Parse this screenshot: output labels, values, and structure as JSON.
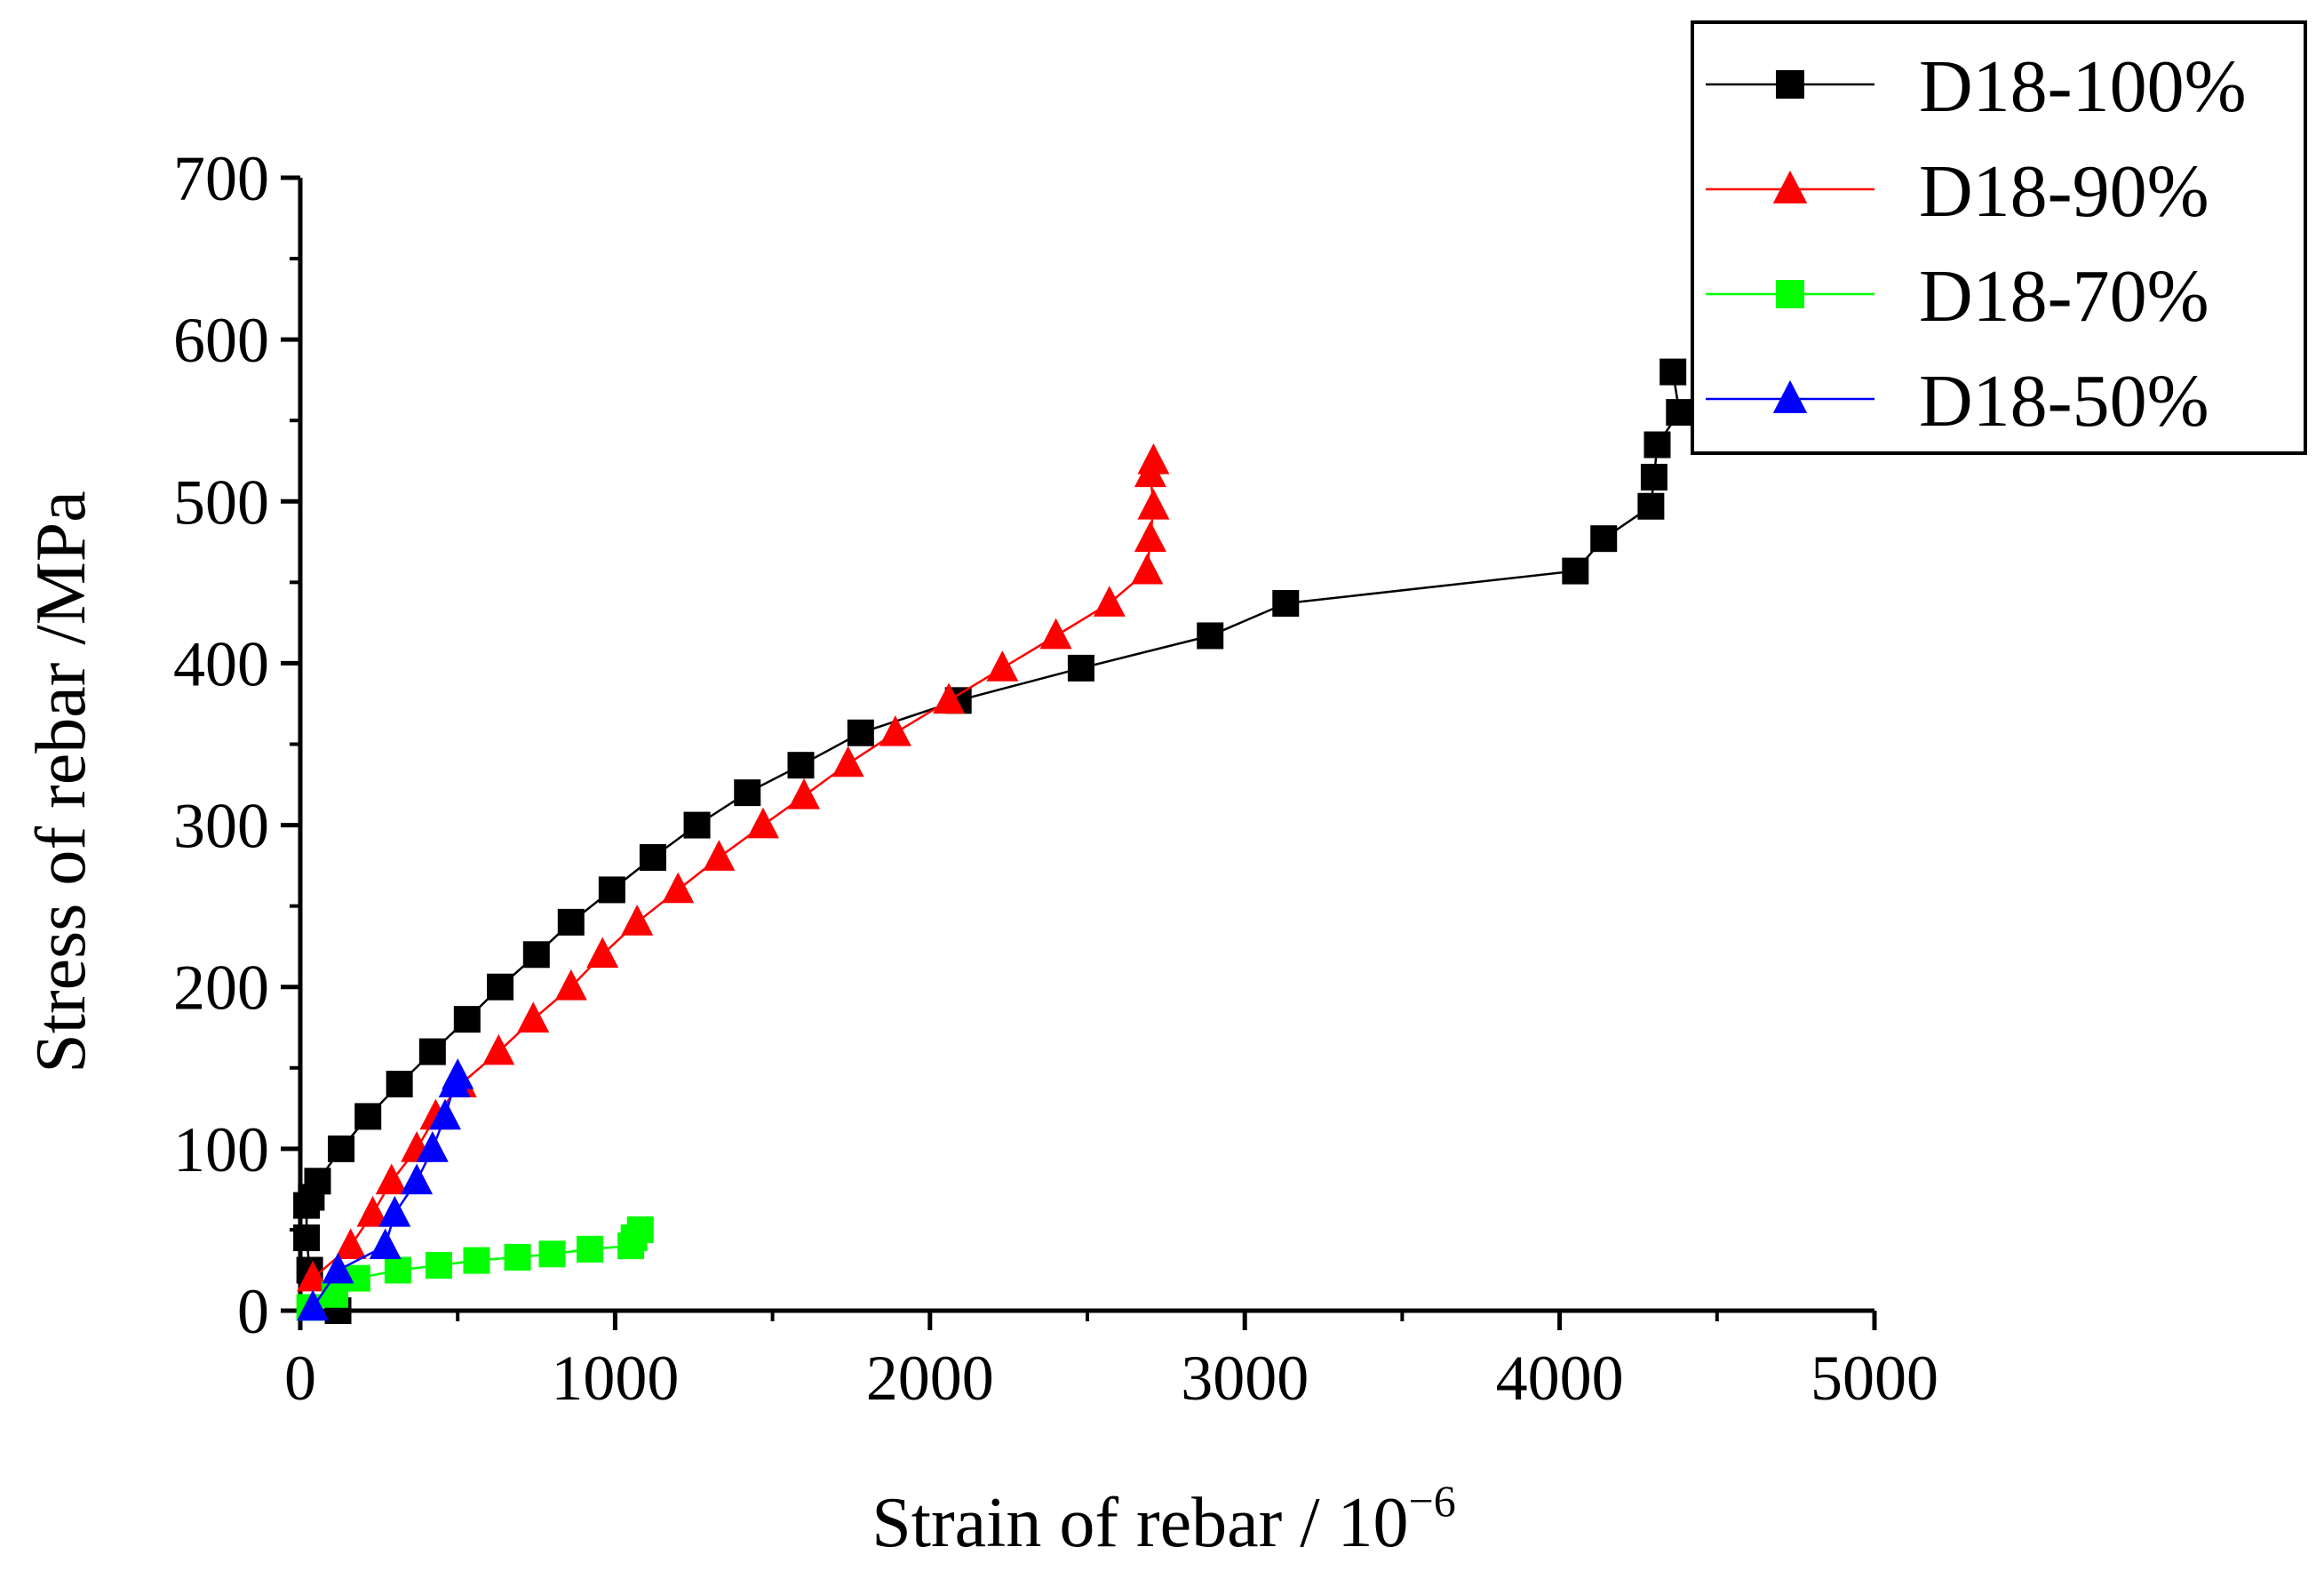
{
  "chart_data": {
    "type": "line",
    "title": "",
    "xlabel": "Strain of rebar / 10",
    "xlabel_exponent": "−6",
    "ylabel": "Stress of rebar /MPa",
    "xlim": [
      0,
      5000
    ],
    "ylim": [
      0,
      700
    ],
    "x_ticks": [
      0,
      1000,
      2000,
      3000,
      4000,
      5000
    ],
    "x_tick_labels": [
      "0",
      "1000",
      "2000",
      "3000",
      "4000",
      "5000"
    ],
    "y_ticks": [
      0,
      100,
      200,
      300,
      400,
      500,
      600,
      700
    ],
    "y_tick_labels": [
      "0",
      "100",
      "200",
      "300",
      "400",
      "500",
      "600",
      "700"
    ],
    "grid": false,
    "legend_position": "top-right",
    "series": [
      {
        "name": "D18-100%",
        "color": "#000000",
        "marker": "square",
        "points": [
          [
            120,
            0
          ],
          [
            30,
            25
          ],
          [
            20,
            45
          ],
          [
            20,
            65
          ],
          [
            35,
            70
          ],
          [
            55,
            80
          ],
          [
            130,
            100
          ],
          [
            215,
            120
          ],
          [
            315,
            140
          ],
          [
            420,
            160
          ],
          [
            530,
            180
          ],
          [
            635,
            200
          ],
          [
            750,
            220
          ],
          [
            860,
            240
          ],
          [
            990,
            260
          ],
          [
            1120,
            280
          ],
          [
            1260,
            300
          ],
          [
            1420,
            320
          ],
          [
            1590,
            337
          ],
          [
            1780,
            357
          ],
          [
            2090,
            377
          ],
          [
            2480,
            397
          ],
          [
            2890,
            417
          ],
          [
            3130,
            437
          ],
          [
            4050,
            457
          ],
          [
            4140,
            477
          ],
          [
            4290,
            497
          ],
          [
            4300,
            515
          ],
          [
            4310,
            535
          ],
          [
            4380,
            555
          ],
          [
            4360,
            580
          ]
        ]
      },
      {
        "name": "D18-90%",
        "color": "#ff0000",
        "marker": "triangle",
        "points": [
          [
            40,
            20
          ],
          [
            160,
            40
          ],
          [
            230,
            60
          ],
          [
            290,
            80
          ],
          [
            370,
            100
          ],
          [
            430,
            120
          ],
          [
            510,
            140
          ],
          [
            630,
            160
          ],
          [
            740,
            180
          ],
          [
            860,
            200
          ],
          [
            960,
            220
          ],
          [
            1070,
            240
          ],
          [
            1200,
            260
          ],
          [
            1330,
            280
          ],
          [
            1470,
            300
          ],
          [
            1600,
            318
          ],
          [
            1740,
            338
          ],
          [
            1890,
            357
          ],
          [
            2060,
            377
          ],
          [
            2230,
            397
          ],
          [
            2400,
            417
          ],
          [
            2570,
            437
          ],
          [
            2690,
            457
          ],
          [
            2700,
            477
          ],
          [
            2710,
            497
          ],
          [
            2700,
            517
          ],
          [
            2710,
            525
          ]
        ]
      },
      {
        "name": "D18-70%",
        "color": "#00ff00",
        "marker": "square",
        "points": [
          [
            30,
            2
          ],
          [
            110,
            10
          ],
          [
            180,
            20
          ],
          [
            310,
            25
          ],
          [
            440,
            28
          ],
          [
            560,
            31
          ],
          [
            690,
            33
          ],
          [
            800,
            35
          ],
          [
            920,
            38
          ],
          [
            1050,
            40
          ],
          [
            1060,
            45
          ],
          [
            1080,
            50
          ]
        ]
      },
      {
        "name": "D18-50%",
        "color": "#0000ff",
        "marker": "triangle",
        "points": [
          [
            40,
            2
          ],
          [
            120,
            25
          ],
          [
            270,
            40
          ],
          [
            300,
            60
          ],
          [
            370,
            80
          ],
          [
            420,
            100
          ],
          [
            460,
            120
          ],
          [
            490,
            140
          ],
          [
            500,
            145
          ]
        ]
      }
    ]
  }
}
